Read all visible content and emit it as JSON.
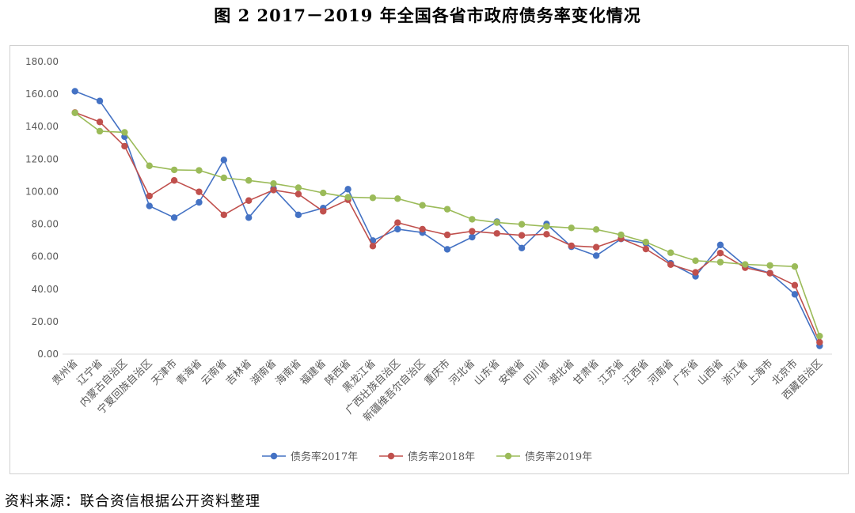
{
  "figure": {
    "title": "图 2    2017－2019 年全国各省市政府债务率变化情况",
    "source": "资料来源：联合资信根据公开资料整理"
  },
  "chart_data": {
    "type": "line",
    "title": "",
    "xlabel": "",
    "ylabel": "",
    "ylim": [
      0,
      180
    ],
    "yticks": [
      "0.00",
      "20.00",
      "40.00",
      "60.00",
      "80.00",
      "100.00",
      "120.00",
      "140.00",
      "160.00",
      "180.00"
    ],
    "grid": false,
    "legend_position": "bottom",
    "categories": [
      "贵州省",
      "辽宁省",
      "内蒙古自治区",
      "宁夏回族自治区",
      "天津市",
      "青海省",
      "云南省",
      "吉林省",
      "湖南省",
      "海南省",
      "福建省",
      "陕西省",
      "黑龙江省",
      "广西壮族自治区",
      "新疆维吾尔自治区",
      "重庆市",
      "河北省",
      "山东省",
      "安徽省",
      "四川省",
      "湖北省",
      "甘肃省",
      "江苏省",
      "江西省",
      "河南省",
      "广东省",
      "山西省",
      "浙江省",
      "上海市",
      "北京市",
      "西藏自治区"
    ],
    "series": [
      {
        "name": "债务率2017年",
        "color": "#4472C4",
        "values": [
          161.8,
          155.8,
          133.8,
          91.2,
          84.0,
          93.4,
          119.5,
          84.0,
          102.0,
          85.7,
          89.9,
          101.5,
          69.9,
          76.9,
          74.8,
          64.5,
          72.0,
          81.5,
          65.3,
          80.1,
          66.1,
          60.6,
          70.9,
          68.2,
          55.9,
          47.9,
          67.2,
          54.4,
          49.9,
          36.8,
          5.1
        ]
      },
      {
        "name": "债务率2018年",
        "color": "#C0504D",
        "values": [
          148.7,
          142.9,
          128.0,
          97.3,
          106.9,
          99.9,
          85.7,
          94.5,
          101.0,
          98.5,
          87.9,
          95.0,
          66.5,
          80.9,
          76.9,
          73.4,
          75.6,
          74.3,
          73.1,
          73.8,
          66.7,
          65.8,
          71.1,
          64.7,
          55.1,
          50.3,
          62.2,
          53.2,
          49.8,
          42.4,
          7.3
        ]
      },
      {
        "name": "债务率2019年",
        "color": "#9BBB59",
        "values": [
          148.5,
          137.2,
          136.5,
          115.9,
          113.4,
          113.1,
          108.5,
          106.9,
          105.0,
          102.4,
          99.2,
          96.6,
          96.2,
          95.7,
          91.6,
          89.2,
          83.0,
          81.0,
          79.9,
          78.6,
          77.7,
          76.7,
          73.4,
          69.0,
          62.4,
          57.5,
          56.6,
          55.2,
          54.6,
          53.9,
          11.1
        ]
      }
    ]
  }
}
